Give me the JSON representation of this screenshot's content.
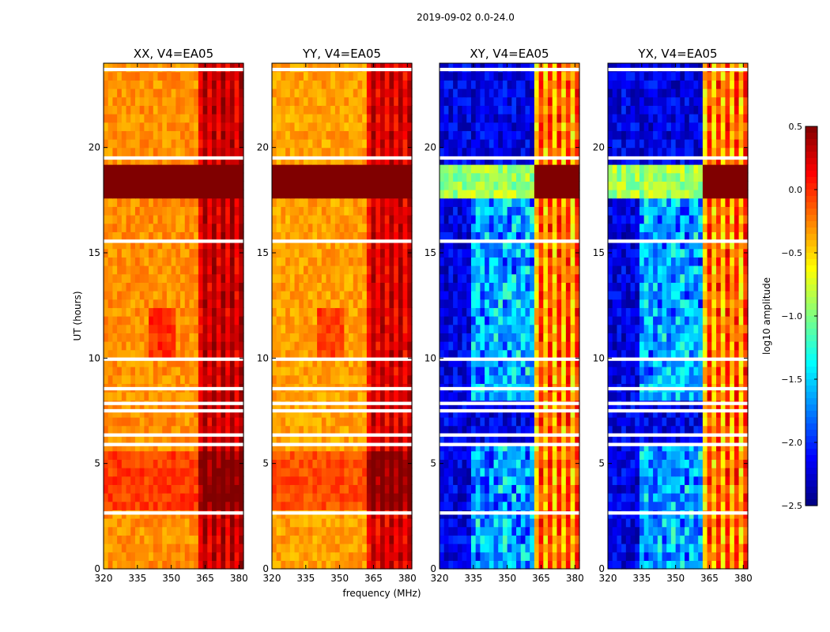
{
  "figure": {
    "suptitle": "2019-09-02 0.0-24.0",
    "shared_xlabel": "frequency (MHz)",
    "shared_ylabel": "UT (hours)"
  },
  "chart_data": [
    {
      "type": "heatmap",
      "title": "XX, V4=EA05",
      "xlabel": "",
      "ylabel": "UT (hours)",
      "xlim": [
        320,
        382
      ],
      "ylim": [
        0,
        24
      ],
      "xticks": [
        320,
        335,
        350,
        365,
        380
      ],
      "yticks": [
        0,
        5,
        10,
        15,
        20
      ],
      "colormap": "jet",
      "clim": [
        -2.5,
        0.5
      ],
      "base_level": -0.3
    },
    {
      "type": "heatmap",
      "title": "YY, V4=EA05",
      "xlabel": "frequency (MHz)",
      "ylabel": "",
      "xlim": [
        320,
        382
      ],
      "ylim": [
        0,
        24
      ],
      "xticks": [
        320,
        335,
        350,
        365,
        380
      ],
      "yticks": [
        0,
        5,
        10,
        15,
        20
      ],
      "colormap": "jet",
      "clim": [
        -2.5,
        0.5
      ],
      "base_level": -0.35
    },
    {
      "type": "heatmap",
      "title": "XY, V4=EA05",
      "xlabel": "",
      "ylabel": "",
      "xlim": [
        320,
        382
      ],
      "ylim": [
        0,
        24
      ],
      "xticks": [
        320,
        335,
        350,
        365,
        380
      ],
      "yticks": [
        0,
        5,
        10,
        15,
        20
      ],
      "colormap": "jet",
      "clim": [
        -2.5,
        0.5
      ],
      "base_level": -2.2
    },
    {
      "type": "heatmap",
      "title": "YX, V4=EA05",
      "xlabel": "",
      "ylabel": "",
      "xlim": [
        320,
        382
      ],
      "ylim": [
        0,
        24
      ],
      "xticks": [
        320,
        335,
        350,
        365,
        380
      ],
      "yticks": [
        0,
        5,
        10,
        15,
        20
      ],
      "colormap": "jet",
      "clim": [
        -2.5,
        0.5
      ],
      "base_level": -2.2
    }
  ],
  "colorbar": {
    "label": "log10 amplitude",
    "ticks": [
      "0.5",
      "0.0",
      "−0.5",
      "−1.0",
      "−1.5",
      "−2.0",
      "−2.5"
    ],
    "range": [
      -2.5,
      0.5
    ]
  },
  "observations": {
    "flagged_white_gaps_ut_hours": [
      2.65,
      5.9,
      6.35,
      7.5,
      7.85,
      8.55,
      9.95,
      15.55,
      19.5,
      23.7
    ],
    "rfi_band_mhz": [
      362,
      382
    ],
    "high_amplitude_ut_range": [
      17.6,
      19.3
    ]
  },
  "colors": {
    "background": "#ffffff",
    "axes": "#000000"
  }
}
